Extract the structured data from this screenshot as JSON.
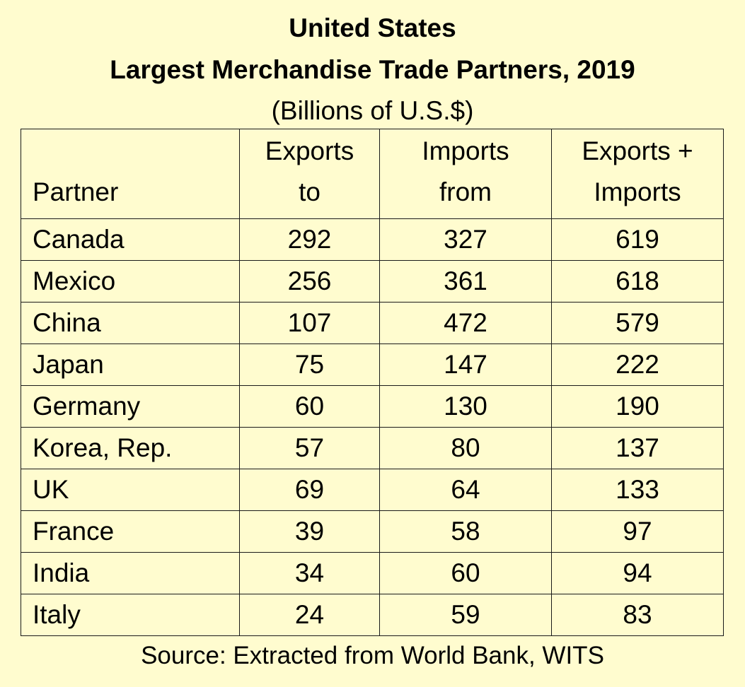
{
  "title_line1": "United States",
  "title_line2": "Largest Merchandise Trade Partners, 2019",
  "subtitle": "(Billions of U.S.$)",
  "source": "Source: Extracted from World Bank, WITS",
  "header": {
    "partner": "Partner",
    "exports_l1": "Exports",
    "exports_l2": "to",
    "imports_l1": "Imports",
    "imports_l2": "from",
    "total_l1": "Exports +",
    "total_l2": "Imports"
  },
  "chart_data": {
    "type": "table",
    "title": "United States Largest Merchandise Trade Partners, 2019",
    "subtitle": "(Billions of U.S.$)",
    "columns": [
      "Partner",
      "Exports to",
      "Imports from",
      "Exports + Imports"
    ],
    "rows": [
      [
        "Canada",
        "292",
        "327",
        "619"
      ],
      [
        "Mexico",
        "256",
        "361",
        "618"
      ],
      [
        "China",
        "107",
        "472",
        "579"
      ],
      [
        "Japan",
        "75",
        "147",
        "222"
      ],
      [
        "Germany",
        "60",
        "130",
        "190"
      ],
      [
        "Korea, Rep.",
        "57",
        "80",
        "137"
      ],
      [
        "UK",
        "69",
        "64",
        "133"
      ],
      [
        "France",
        "39",
        "58",
        "97"
      ],
      [
        "India",
        "34",
        "60",
        "94"
      ],
      [
        "Italy",
        "24",
        "59",
        "83"
      ]
    ]
  }
}
